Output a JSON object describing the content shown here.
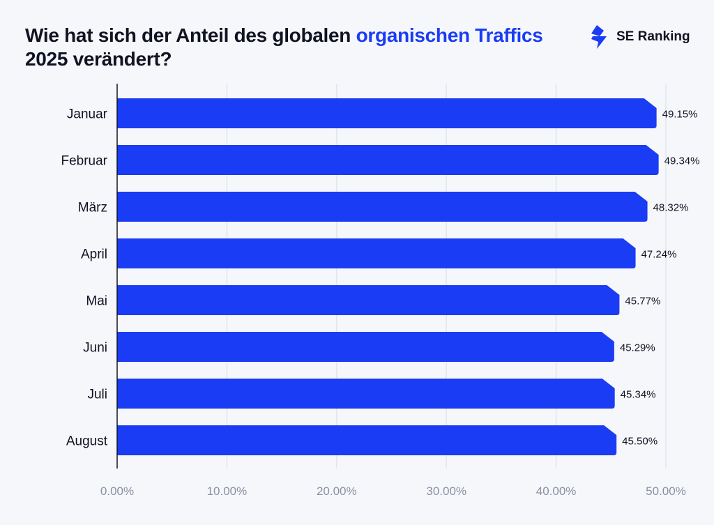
{
  "title": {
    "part1": "Wie hat sich der Anteil des globalen ",
    "highlight": "organischen Traffics",
    "part2": " 2025 verändert?"
  },
  "logo": {
    "text": "SE Ranking",
    "icon": "lightning-bolt-icon"
  },
  "colors": {
    "bar": "#1a3cf5",
    "title_highlight": "#1a3cf5",
    "grid": "#e1e5ee",
    "tick_label": "#8a90a2"
  },
  "chart_data": {
    "type": "bar",
    "orientation": "horizontal",
    "categories": [
      "Januar",
      "Februar",
      "März",
      "April",
      "Mai",
      "Juni",
      "Juli",
      "August"
    ],
    "values": [
      49.15,
      49.34,
      48.32,
      47.24,
      45.77,
      45.29,
      45.34,
      45.5
    ],
    "value_labels": [
      "49.15%",
      "49.34%",
      "48.32%",
      "47.24%",
      "45.77%",
      "45.29%",
      "45.34%",
      "45.50%"
    ],
    "xlim": [
      0,
      50
    ],
    "xticks": [
      0,
      10,
      20,
      30,
      40,
      50
    ],
    "xtick_labels": [
      "0.00%",
      "10.00%",
      "20.00%",
      "30.00%",
      "40.00%",
      "50.00%"
    ],
    "grid": "vertical",
    "unit": "%"
  }
}
